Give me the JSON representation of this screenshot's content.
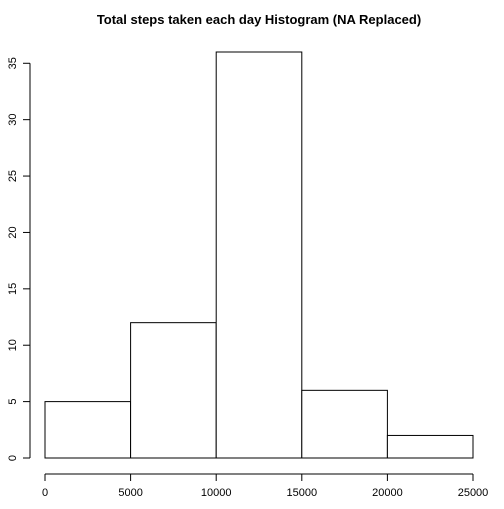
{
  "chart_data": {
    "type": "bar",
    "title": "Total steps taken each day Histogram (NA Replaced)",
    "xlabel": "",
    "ylabel": "",
    "bins": [
      {
        "from": 0,
        "to": 5000,
        "count": 5
      },
      {
        "from": 5000,
        "to": 10000,
        "count": 12
      },
      {
        "from": 10000,
        "to": 15000,
        "count": 36
      },
      {
        "from": 15000,
        "to": 20000,
        "count": 6
      },
      {
        "from": 20000,
        "to": 25000,
        "count": 2
      }
    ],
    "xlim": [
      0,
      25000
    ],
    "ylim": [
      0,
      36
    ],
    "x_ticks": [
      0,
      5000,
      10000,
      15000,
      20000,
      25000
    ],
    "x_tick_labels": [
      "0",
      "5000",
      "10000",
      "15000",
      "20000",
      "25000"
    ],
    "y_ticks": [
      0,
      5,
      10,
      15,
      20,
      25,
      30,
      35
    ],
    "y_tick_labels": [
      "0",
      "5",
      "10",
      "15",
      "20",
      "25",
      "30",
      "35"
    ],
    "grid": false,
    "bar_fill": "#ffffff",
    "bar_stroke": "#000000"
  }
}
